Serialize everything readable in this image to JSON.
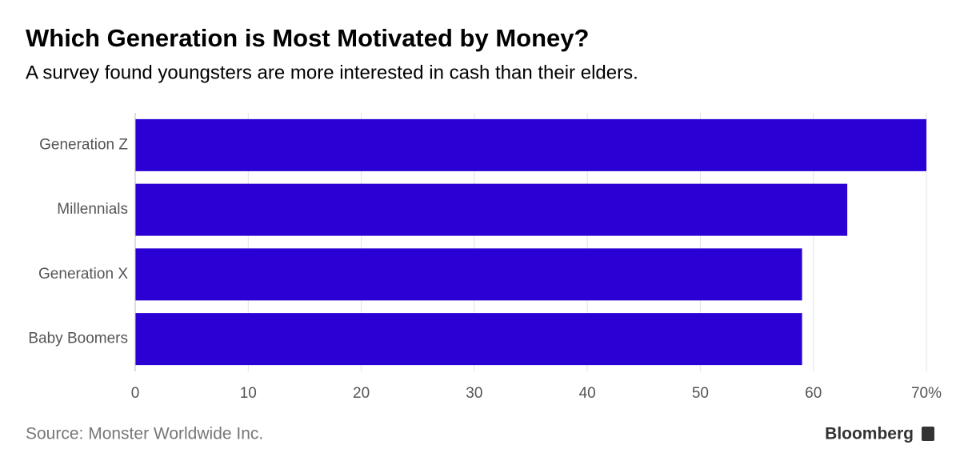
{
  "chart_data": {
    "type": "hbar",
    "title": "Which Generation is Most Motivated by Money?",
    "subtitle": "A survey found youngsters are more interested in cash than their elders.",
    "categories": [
      "Generation Z",
      "Millennials",
      "Generation X",
      "Baby Boomers"
    ],
    "values": [
      70,
      63,
      59,
      59
    ],
    "color": "#2a00d5",
    "xlim": [
      0,
      70
    ],
    "xticks": [
      0,
      10,
      20,
      30,
      40,
      50,
      60,
      {
        "value": 70,
        "label": "70%"
      }
    ],
    "grid": true,
    "source": "Source: Monster Worldwide Inc.",
    "brand": "Bloomberg"
  }
}
